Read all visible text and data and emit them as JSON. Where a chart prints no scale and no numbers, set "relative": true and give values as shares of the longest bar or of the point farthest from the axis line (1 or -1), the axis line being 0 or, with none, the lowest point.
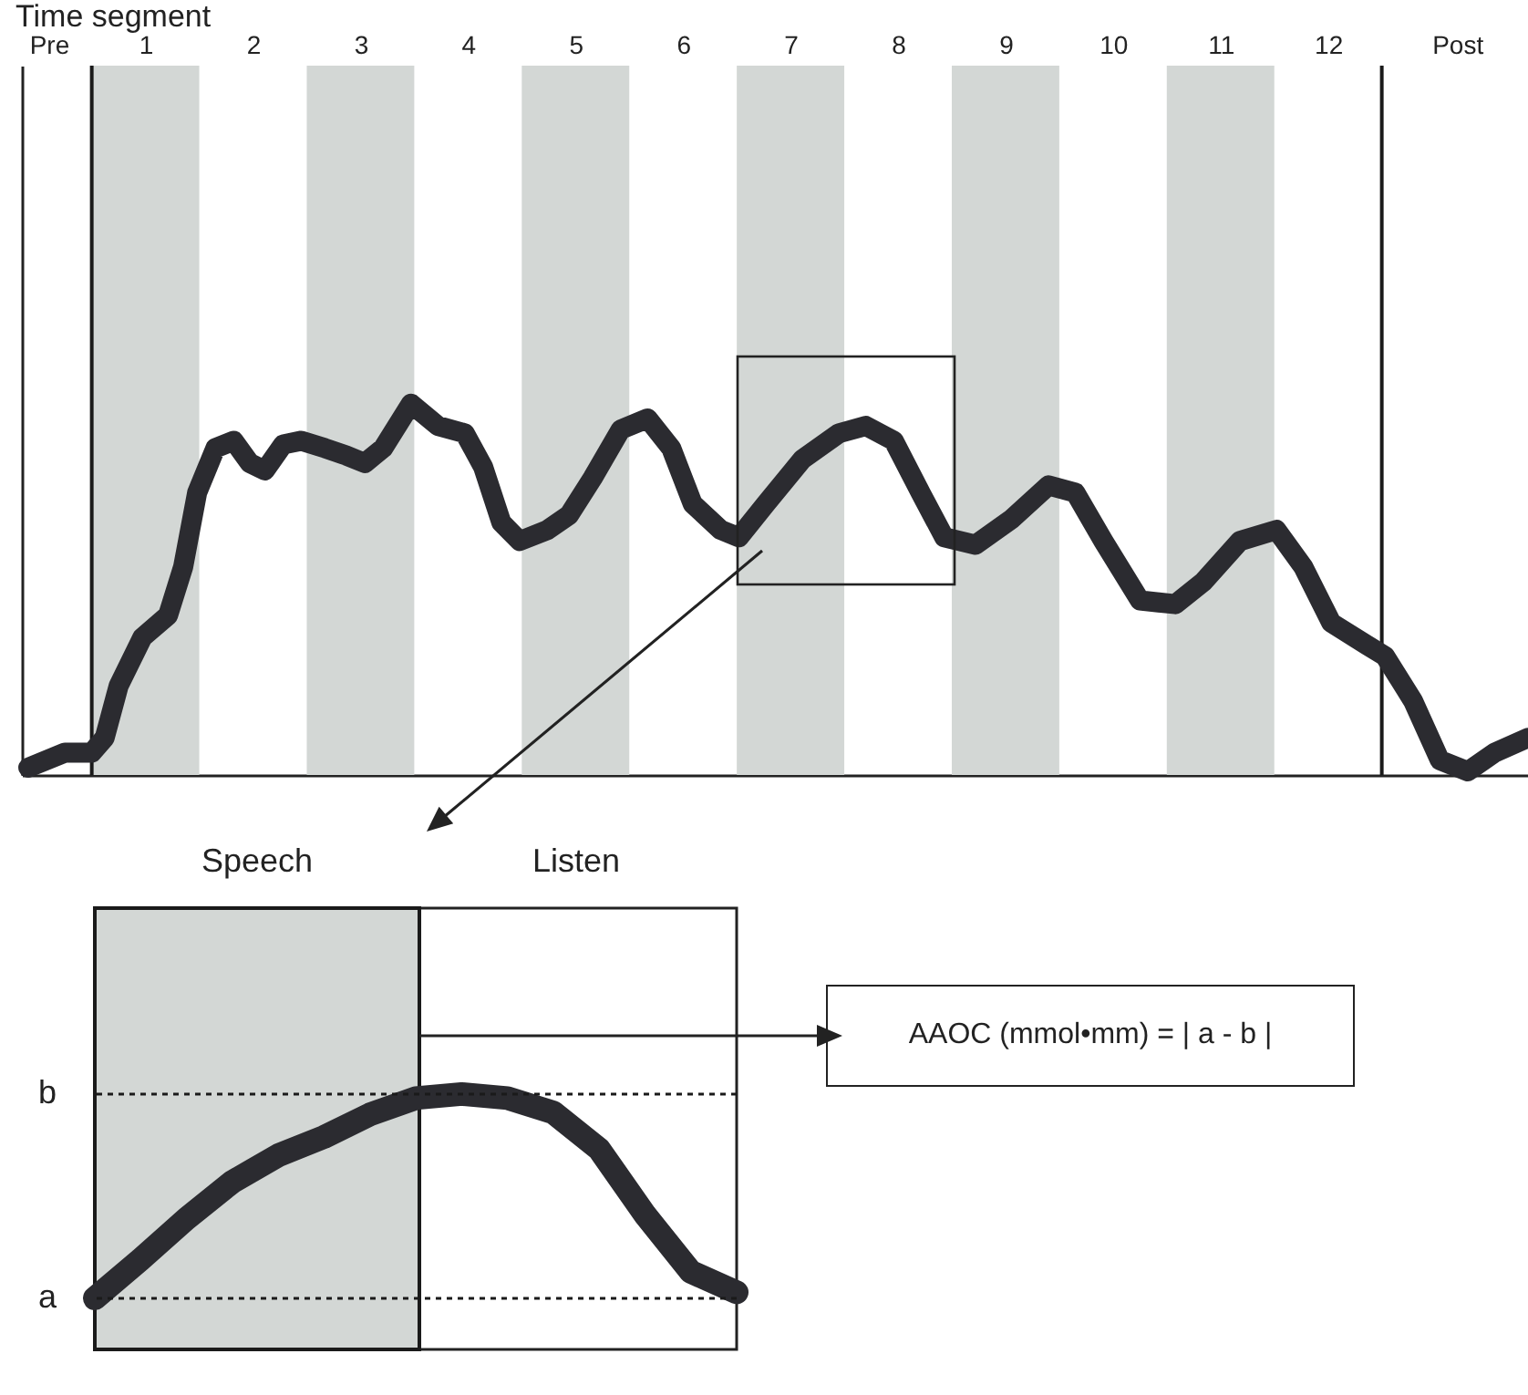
{
  "chart_data": [
    {
      "type": "line",
      "xlabel": "Time segment",
      "relative": true,
      "xlim": [
        -0.65,
        13.36
      ],
      "xticks": [
        {
          "value": -0.4,
          "label": "Pre"
        },
        {
          "value": 0.5,
          "label": "1"
        },
        {
          "value": 1.5,
          "label": "2"
        },
        {
          "value": 2.5,
          "label": "3"
        },
        {
          "value": 3.5,
          "label": "4"
        },
        {
          "value": 4.5,
          "label": "5"
        },
        {
          "value": 5.5,
          "label": "6"
        },
        {
          "value": 6.5,
          "label": "7"
        },
        {
          "value": 7.5,
          "label": "8"
        },
        {
          "value": 8.5,
          "label": "9"
        },
        {
          "value": 9.5,
          "label": "10"
        },
        {
          "value": 10.5,
          "label": "11"
        },
        {
          "value": 11.5,
          "label": "12"
        },
        {
          "value": 12.7,
          "label": "Post"
        }
      ],
      "series": [
        {
          "color": "#2b2b30",
          "x": [
            -0.59,
            -0.25,
            0,
            0.12,
            0.25,
            0.47,
            0.71,
            0.85,
            0.98,
            1.15,
            1.32,
            1.47,
            1.61,
            1.78,
            1.95,
            2.17,
            2.37,
            2.54,
            2.71,
            2.97,
            3.22,
            3.47,
            3.64,
            3.81,
            3.98,
            4.24,
            4.44,
            4.66,
            4.92,
            5.17,
            5.39,
            5.59,
            5.85,
            6.02,
            6.27,
            6.61,
            6.95,
            7.2,
            7.46,
            7.71,
            7.93,
            8.22,
            8.56,
            8.9,
            9.15,
            9.41,
            9.75,
            10.08,
            10.34,
            10.68,
            11.02,
            11.27,
            11.53,
            11.86,
            12.03,
            12.29,
            12.54,
            12.8,
            13.05,
            13.36
          ],
          "values": [
            0.02,
            0.06,
            0.06,
            0.1,
            0.24,
            0.37,
            0.43,
            0.56,
            0.76,
            0.88,
            0.9,
            0.84,
            0.82,
            0.89,
            0.9,
            0.88,
            0.86,
            0.84,
            0.88,
            1.0,
            0.94,
            0.92,
            0.83,
            0.68,
            0.63,
            0.66,
            0.7,
            0.8,
            0.93,
            0.96,
            0.88,
            0.73,
            0.66,
            0.64,
            0.73,
            0.85,
            0.92,
            0.94,
            0.9,
            0.76,
            0.64,
            0.62,
            0.69,
            0.78,
            0.76,
            0.63,
            0.47,
            0.46,
            0.52,
            0.63,
            0.66,
            0.56,
            0.41,
            0.35,
            0.32,
            0.2,
            0.04,
            0.01,
            0.06,
            0.1
          ]
        }
      ],
      "bands": [
        {
          "axis": "x",
          "from": 0,
          "to": 1,
          "color": "#d3d7d5"
        },
        {
          "axis": "x",
          "from": 2,
          "to": 3,
          "color": "#d3d7d5"
        },
        {
          "axis": "x",
          "from": 4,
          "to": 5,
          "color": "#d3d7d5"
        },
        {
          "axis": "x",
          "from": 6,
          "to": 7,
          "color": "#d3d7d5"
        },
        {
          "axis": "x",
          "from": 8,
          "to": 9,
          "color": "#d3d7d5"
        },
        {
          "axis": "x",
          "from": 10,
          "to": 11,
          "color": "#d3d7d5"
        }
      ],
      "ref_lines": [
        {
          "axis": "x",
          "value": 0,
          "color": "#1a1a1a"
        },
        {
          "axis": "x",
          "value": 12,
          "color": "#1a1a1a"
        }
      ]
    },
    {
      "type": "line",
      "relative": true,
      "categories": [
        null,
        null,
        null,
        null,
        null,
        null,
        null,
        null,
        null,
        null,
        null,
        null,
        null,
        null,
        null
      ],
      "series": [
        {
          "color": "#2b2b30",
          "values": [
            0,
            0.19,
            0.39,
            0.57,
            0.7,
            0.79,
            0.9,
            0.98,
            1.0,
            0.98,
            0.91,
            0.73,
            0.41,
            0.13,
            0.03
          ]
        }
      ],
      "ref_lines": [
        {
          "axis": "y",
          "value": 0,
          "color": "#1a1a1a",
          "line_style": "dotted",
          "label": "a"
        },
        {
          "axis": "y",
          "value": 1,
          "color": "#1a1a1a",
          "line_style": "dotted",
          "label": "b"
        }
      ],
      "annotations": [
        "Speech",
        "Listen",
        "AAOC (mmol•mm) = | a - b |"
      ]
    }
  ]
}
